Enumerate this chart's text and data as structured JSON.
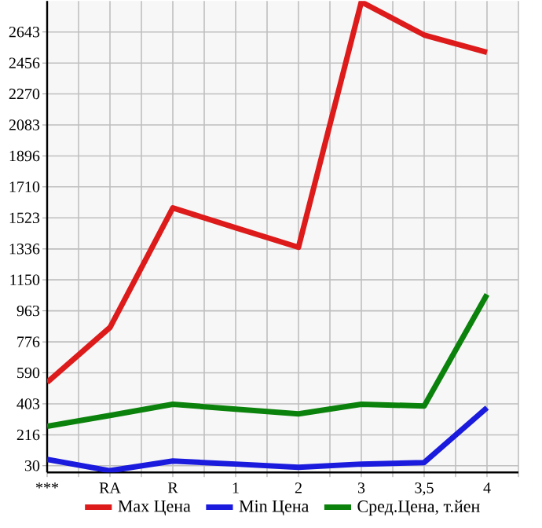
{
  "chart_data": {
    "type": "line",
    "categories": [
      "***",
      "RA",
      "R",
      "1",
      "2",
      "3",
      "3,5",
      "4"
    ],
    "series": [
      {
        "name": "Max Цена",
        "color": "#dd1b1b",
        "values": [
          532,
          863,
          1583,
          1464,
          1346,
          2824,
          2625,
          2520
        ]
      },
      {
        "name": "Min Цена",
        "color": "#1b1bdd",
        "values": [
          68,
          0,
          58,
          40,
          20,
          40,
          49,
          380
        ]
      },
      {
        "name": "Сред.Цена, т.йен",
        "color": "#0b820b",
        "values": [
          267,
          333,
          400,
          371,
          342,
          400,
          390,
          1062
        ]
      }
    ],
    "ylim": [
      -10,
      2830
    ],
    "yticks": [
      30,
      216,
      403,
      590,
      776,
      963,
      1150,
      1336,
      1523,
      1710,
      1896,
      2083,
      2270,
      2456,
      2643
    ],
    "grid": true,
    "legend": "bottom",
    "marker": "none",
    "line_style": "solid"
  }
}
